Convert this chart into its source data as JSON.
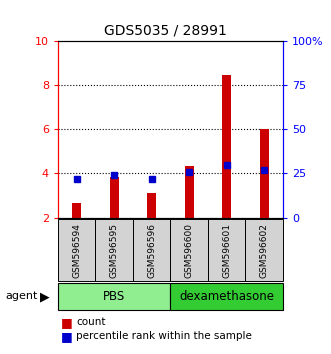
{
  "title": "GDS5035 / 28991",
  "samples": [
    "GSM596594",
    "GSM596595",
    "GSM596596",
    "GSM596600",
    "GSM596601",
    "GSM596602"
  ],
  "count_values": [
    2.65,
    3.85,
    3.1,
    4.35,
    8.45,
    6.0
  ],
  "percentile_values": [
    22,
    24,
    22,
    26,
    30,
    27
  ],
  "ylim_left": [
    2,
    10
  ],
  "ylim_right": [
    0,
    100
  ],
  "yticks_left": [
    2,
    4,
    6,
    8,
    10
  ],
  "yticks_right": [
    0,
    25,
    50,
    75,
    100
  ],
  "ytick_labels_right": [
    "0",
    "25",
    "50",
    "75",
    "100%"
  ],
  "bar_color": "#CC0000",
  "percentile_color": "#0000CC",
  "bar_width": 0.25,
  "pbs_color": "#90EE90",
  "dex_color": "#33CC33",
  "legend_count_label": "count",
  "legend_percentile_label": "percentile rank within the sample"
}
